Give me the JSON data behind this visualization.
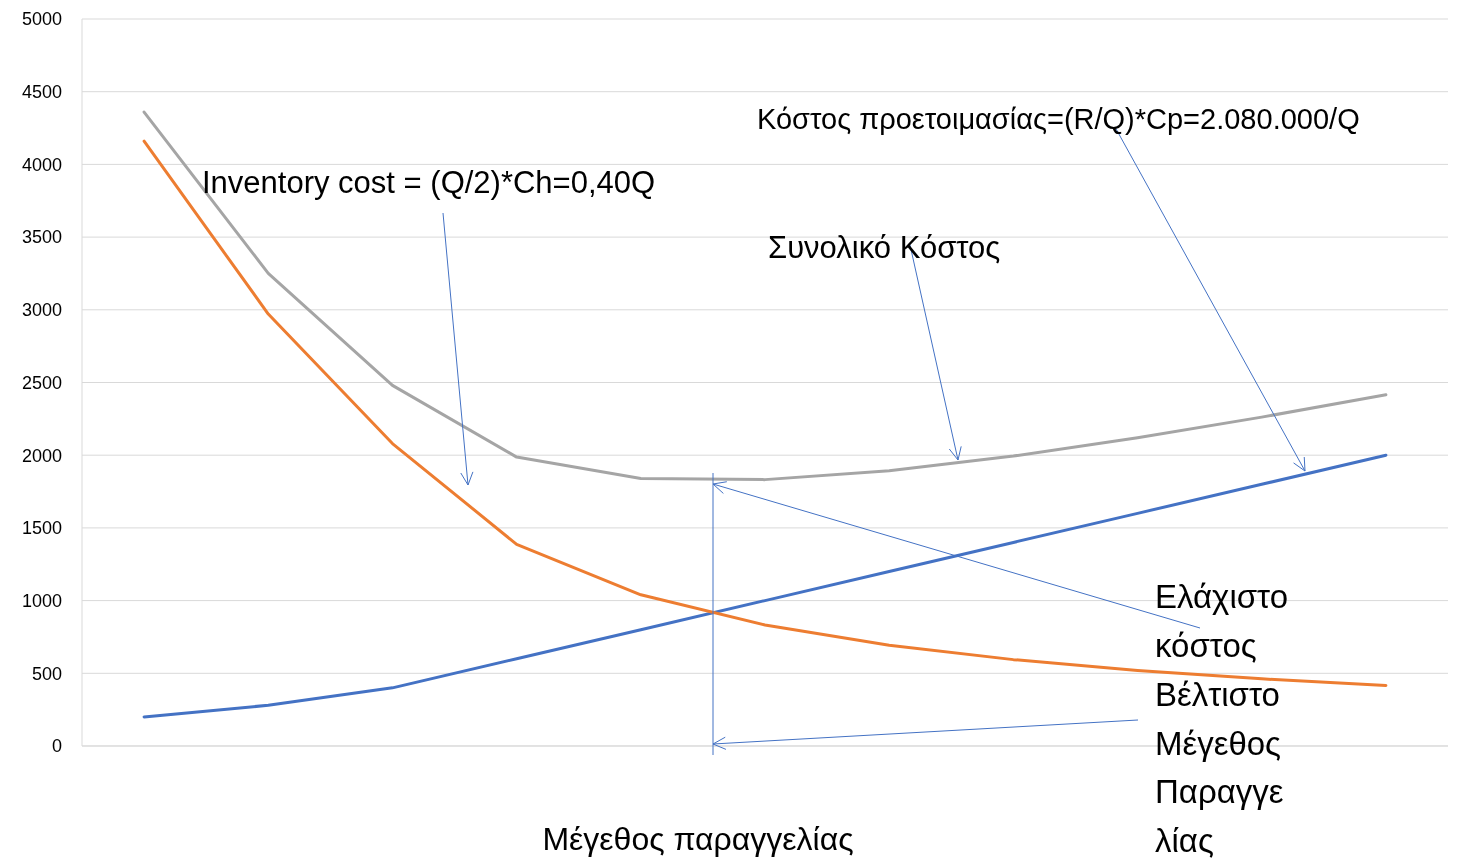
{
  "chart_data": {
    "type": "line",
    "xlabel": "Μέγεθος παραγγελίας",
    "categories": [
      null,
      null,
      null,
      null,
      null,
      null,
      null,
      null,
      null,
      null,
      null
    ],
    "series": [
      {
        "color": "#4472c4",
        "values": [
          200,
          280,
          400,
          600,
          800,
          1000,
          1200,
          1400,
          1600,
          1800,
          2000
        ]
      },
      {
        "color": "#ed7d31",
        "values": [
          4160,
          2971,
          2080,
          1387,
          1040,
          832,
          693,
          594,
          520,
          462,
          416
        ]
      },
      {
        "color": "#a5a5a5",
        "values": [
          4360,
          3251,
          2480,
          1987,
          1840,
          1832,
          1893,
          1994,
          2120,
          2262,
          2416
        ]
      }
    ],
    "ylim": [
      0,
      5000
    ],
    "yticks": [
      0,
      500,
      1000,
      1500,
      2000,
      2500,
      3000,
      3500,
      4000,
      4500,
      5000
    ],
    "grid": "y",
    "marker": "none",
    "line_style": "solid",
    "annotations": [
      "Inventory cost = (Q/2)*Ch=0,40Q",
      "Κόστος προετοιμασίας=(R/Q)*Cp=2.080.000/Q",
      "Συνολικό Κόστος",
      "Ελάχιστο κόστος",
      "Βέλτιστο Μέγεθος Παραγγελίας"
    ]
  }
}
